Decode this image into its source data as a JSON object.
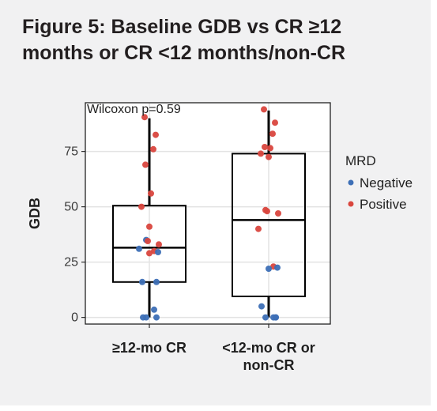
{
  "figure": {
    "title_line1": "Figure 5: Baseline GDB vs CR ≥12",
    "title_line2": "months or CR <12 months/non-CR"
  },
  "chart_data": {
    "type": "boxplot",
    "ylabel": "GDB",
    "xlabel": "",
    "ylim": [
      -3,
      97
    ],
    "yticks": [
      0,
      25,
      50,
      75
    ],
    "grid": true,
    "annotation": "Wilcoxon p=0.59",
    "legend": {
      "title": "MRD",
      "position": "right",
      "entries": [
        {
          "name": "Negative",
          "color": "#3d6fb6"
        },
        {
          "name": "Positive",
          "color": "#d9463e"
        }
      ]
    },
    "groups": [
      {
        "label_line1": "≥12-mo CR",
        "label_line2": "",
        "box": {
          "whisker_low": 0,
          "q1": 16,
          "median": 31.5,
          "q3": 50.5,
          "whisker_high": 90
        },
        "points": [
          {
            "y": 90.5,
            "mrd": "Positive"
          },
          {
            "y": 82.5,
            "mrd": "Positive"
          },
          {
            "y": 76,
            "mrd": "Positive"
          },
          {
            "y": 69,
            "mrd": "Positive"
          },
          {
            "y": 56,
            "mrd": "Positive"
          },
          {
            "y": 50,
            "mrd": "Positive"
          },
          {
            "y": 41,
            "mrd": "Positive"
          },
          {
            "y": 35,
            "mrd": "Negative"
          },
          {
            "y": 34.5,
            "mrd": "Positive"
          },
          {
            "y": 33,
            "mrd": "Positive"
          },
          {
            "y": 31,
            "mrd": "Negative"
          },
          {
            "y": 30,
            "mrd": "Positive"
          },
          {
            "y": 29.5,
            "mrd": "Negative"
          },
          {
            "y": 29,
            "mrd": "Positive"
          },
          {
            "y": 16,
            "mrd": "Negative"
          },
          {
            "y": 16,
            "mrd": "Negative"
          },
          {
            "y": 3.5,
            "mrd": "Negative"
          },
          {
            "y": 0,
            "mrd": "Negative"
          },
          {
            "y": 0,
            "mrd": "Negative"
          },
          {
            "y": 0,
            "mrd": "Negative"
          }
        ]
      },
      {
        "label_line1": "<12-mo CR or",
        "label_line2": "non-CR",
        "box": {
          "whisker_low": 0,
          "q1": 9.5,
          "median": 44,
          "q3": 74,
          "whisker_high": 93.5
        },
        "points": [
          {
            "y": 94,
            "mrd": "Positive"
          },
          {
            "y": 88,
            "mrd": "Positive"
          },
          {
            "y": 83,
            "mrd": "Positive"
          },
          {
            "y": 77,
            "mrd": "Positive"
          },
          {
            "y": 76.5,
            "mrd": "Positive"
          },
          {
            "y": 74,
            "mrd": "Positive"
          },
          {
            "y": 72.5,
            "mrd": "Positive"
          },
          {
            "y": 48.5,
            "mrd": "Positive"
          },
          {
            "y": 48,
            "mrd": "Positive"
          },
          {
            "y": 47,
            "mrd": "Positive"
          },
          {
            "y": 40,
            "mrd": "Positive"
          },
          {
            "y": 23,
            "mrd": "Positive"
          },
          {
            "y": 22.5,
            "mrd": "Negative"
          },
          {
            "y": 22,
            "mrd": "Negative"
          },
          {
            "y": 5,
            "mrd": "Negative"
          },
          {
            "y": 0,
            "mrd": "Negative"
          },
          {
            "y": 0,
            "mrd": "Negative"
          },
          {
            "y": 0,
            "mrd": "Negative"
          },
          {
            "y": 0,
            "mrd": "Negative"
          }
        ]
      }
    ]
  }
}
